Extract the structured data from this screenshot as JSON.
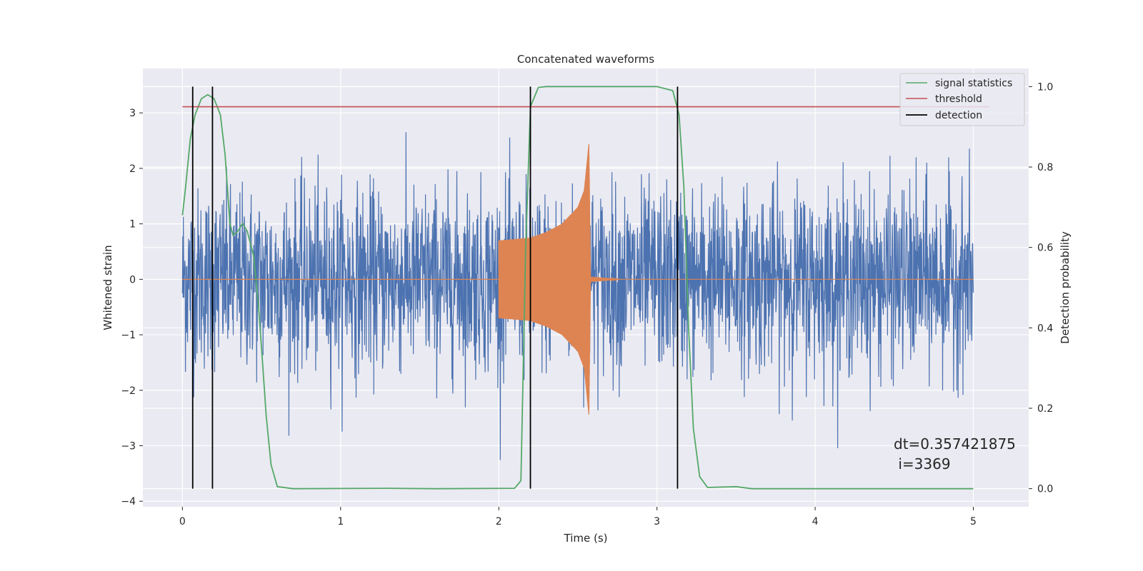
{
  "chart_data": {
    "type": "line",
    "title": "Concatenated waveforms",
    "xlabel": "Time (s)",
    "ylabel": "Whitened strain",
    "y2label": "Detection probability",
    "xlim": [
      -0.25,
      5.35
    ],
    "ylim": [
      -4.1,
      3.8
    ],
    "y2lim": [
      -0.045,
      1.045
    ],
    "x_ticks": [
      0,
      1,
      2,
      3,
      4,
      5
    ],
    "y_ticks": [
      -4,
      -3,
      -2,
      -1,
      0,
      1,
      2,
      3
    ],
    "y2_ticks": [
      0.0,
      0.2,
      0.4,
      0.6,
      0.8,
      1.0
    ],
    "x_tick_labels": [
      "0",
      "1",
      "2",
      "3",
      "4",
      "5"
    ],
    "y_tick_labels": [
      "−4",
      "−3",
      "−2",
      "−1",
      "0",
      "1",
      "2",
      "3"
    ],
    "y2_tick_labels": [
      "0.0",
      "0.2",
      "0.4",
      "0.6",
      "0.8",
      "1.0"
    ],
    "grid": true,
    "legend_position": "top-right",
    "colors": {
      "background": "#eaeaf2",
      "noise": "#4c72b0",
      "injected": "#dd8452",
      "signal_statistics": "#55a868",
      "threshold": "#c44e52",
      "detection": "#000000"
    },
    "series": [
      {
        "name": "noise",
        "axis": "left",
        "description": "whitened strain noise 0 to 5 s",
        "x_range": [
          0,
          5
        ],
        "std": 0.6,
        "max": 3.45,
        "min": -3.75
      },
      {
        "name": "injected",
        "axis": "left",
        "x_range": [
          2.0,
          2.58
        ],
        "envelope": [
          {
            "x": 2.0,
            "amp": 0.7
          },
          {
            "x": 2.2,
            "amp": 0.75
          },
          {
            "x": 2.3,
            "amp": 0.85
          },
          {
            "x": 2.4,
            "amp": 1.0
          },
          {
            "x": 2.5,
            "amp": 1.3
          },
          {
            "x": 2.54,
            "amp": 1.6
          },
          {
            "x": 2.57,
            "amp": 2.45
          },
          {
            "x": 2.58,
            "amp": 0.0
          },
          {
            "x": 2.75,
            "amp": 0.05
          }
        ]
      },
      {
        "name": "signal statistics",
        "axis": "right",
        "points": [
          [
            0.0,
            0.68
          ],
          [
            0.02,
            0.75
          ],
          [
            0.05,
            0.87
          ],
          [
            0.08,
            0.93
          ],
          [
            0.12,
            0.97
          ],
          [
            0.16,
            0.98
          ],
          [
            0.2,
            0.97
          ],
          [
            0.24,
            0.93
          ],
          [
            0.27,
            0.83
          ],
          [
            0.3,
            0.66
          ],
          [
            0.32,
            0.63
          ],
          [
            0.35,
            0.64
          ],
          [
            0.38,
            0.66
          ],
          [
            0.41,
            0.64
          ],
          [
            0.45,
            0.58
          ],
          [
            0.48,
            0.46
          ],
          [
            0.5,
            0.35
          ],
          [
            0.53,
            0.18
          ],
          [
            0.56,
            0.06
          ],
          [
            0.6,
            0.005
          ],
          [
            0.7,
            0.0
          ],
          [
            1.3,
            0.001
          ],
          [
            1.6,
            0.0
          ],
          [
            2.1,
            0.001
          ],
          [
            2.14,
            0.02
          ],
          [
            2.17,
            0.6
          ],
          [
            2.2,
            0.95
          ],
          [
            2.25,
            0.998
          ],
          [
            2.3,
            1.0
          ],
          [
            3.0,
            1.0
          ],
          [
            3.1,
            0.99
          ],
          [
            3.14,
            0.93
          ],
          [
            3.17,
            0.75
          ],
          [
            3.2,
            0.4
          ],
          [
            3.23,
            0.15
          ],
          [
            3.27,
            0.03
          ],
          [
            3.32,
            0.003
          ],
          [
            3.5,
            0.005
          ],
          [
            3.6,
            0.0
          ],
          [
            5.0,
            0.0
          ]
        ]
      },
      {
        "name": "threshold",
        "axis": "right",
        "value": 0.95,
        "x_range": [
          0,
          5.1
        ]
      },
      {
        "name": "detection",
        "axis": "right",
        "x": [
          0.065,
          0.19,
          2.2,
          3.13
        ],
        "y_range": [
          0.0,
          1.0
        ]
      }
    ],
    "legend": {
      "entries": [
        "signal statistics",
        "threshold",
        "detection"
      ]
    },
    "annotation": {
      "line1": "dt=0.357421875",
      "line2": " i=3369"
    }
  }
}
